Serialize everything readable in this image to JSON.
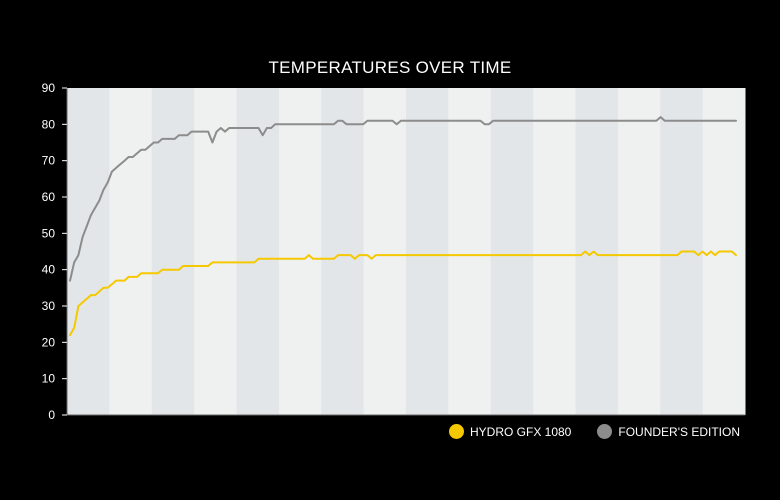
{
  "chart_data": {
    "type": "line",
    "title": "TEMPERATURES OVER TIME",
    "xlabel": "",
    "ylabel": "",
    "ylim": [
      0,
      90
    ],
    "yticks": [
      0,
      10,
      20,
      30,
      40,
      50,
      60,
      70,
      80,
      90
    ],
    "x_count": 160,
    "grid": false,
    "background_bands": "alternating",
    "legend_position": "bottom-right",
    "series": [
      {
        "name": "HYDRO GFX 1080",
        "color": "#F5C800",
        "values": [
          22,
          24,
          30,
          31,
          32,
          33,
          33,
          34,
          35,
          35,
          36,
          37,
          37,
          37,
          38,
          38,
          38,
          39,
          39,
          39,
          39,
          39,
          40,
          40,
          40,
          40,
          40,
          41,
          41,
          41,
          41,
          41,
          41,
          41,
          42,
          42,
          42,
          42,
          42,
          42,
          42,
          42,
          42,
          42,
          42,
          43,
          43,
          43,
          43,
          43,
          43,
          43,
          43,
          43,
          43,
          43,
          43,
          44,
          43,
          43,
          43,
          43,
          43,
          43,
          44,
          44,
          44,
          44,
          43,
          44,
          44,
          44,
          43,
          44,
          44,
          44,
          44,
          44,
          44,
          44,
          44,
          44,
          44,
          44,
          44,
          44,
          44,
          44,
          44,
          44,
          44,
          44,
          44,
          44,
          44,
          44,
          44,
          44,
          44,
          44,
          44,
          44,
          44,
          44,
          44,
          44,
          44,
          44,
          44,
          44,
          44,
          44,
          44,
          44,
          44,
          44,
          44,
          44,
          44,
          44,
          44,
          44,
          44,
          45,
          44,
          45,
          44,
          44,
          44,
          44,
          44,
          44,
          44,
          44,
          44,
          44,
          44,
          44,
          44,
          44,
          44,
          44,
          44,
          44,
          44,
          44,
          45,
          45,
          45,
          45,
          44,
          45,
          44,
          45,
          44,
          45,
          45,
          45,
          45,
          44
        ]
      },
      {
        "name": "FOUNDER'S EDITION",
        "color": "#8C8C8C",
        "values": [
          37,
          42,
          44,
          49,
          52,
          55,
          57,
          59,
          62,
          64,
          67,
          68,
          69,
          70,
          71,
          71,
          72,
          73,
          73,
          74,
          75,
          75,
          76,
          76,
          76,
          76,
          77,
          77,
          77,
          78,
          78,
          78,
          78,
          78,
          75,
          78,
          79,
          78,
          79,
          79,
          79,
          79,
          79,
          79,
          79,
          79,
          77,
          79,
          79,
          80,
          80,
          80,
          80,
          80,
          80,
          80,
          80,
          80,
          80,
          80,
          80,
          80,
          80,
          80,
          81,
          81,
          80,
          80,
          80,
          80,
          80,
          81,
          81,
          81,
          81,
          81,
          81,
          81,
          80,
          81,
          81,
          81,
          81,
          81,
          81,
          81,
          81,
          81,
          81,
          81,
          81,
          81,
          81,
          81,
          81,
          81,
          81,
          81,
          81,
          80,
          80,
          81,
          81,
          81,
          81,
          81,
          81,
          81,
          81,
          81,
          81,
          81,
          81,
          81,
          81,
          81,
          81,
          81,
          81,
          81,
          81,
          81,
          81,
          81,
          81,
          81,
          81,
          81,
          81,
          81,
          81,
          81,
          81,
          81,
          81,
          81,
          81,
          81,
          81,
          81,
          81,
          82,
          81,
          81,
          81,
          81,
          81,
          81,
          81,
          81,
          81,
          81,
          81,
          81,
          81,
          81,
          81,
          81,
          81,
          81
        ]
      }
    ]
  }
}
